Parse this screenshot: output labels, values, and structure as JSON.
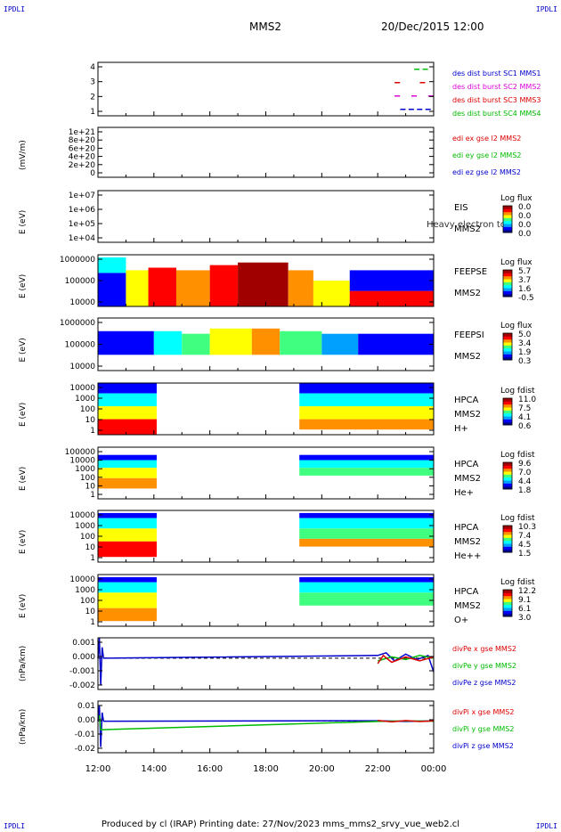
{
  "corners": {
    "tl": "IPDLI",
    "tr": "IPDLI",
    "bl": "IPDLI",
    "br": "IPDLI"
  },
  "header": {
    "title": "MMS2",
    "date": "20/Dec/2015 12:00"
  },
  "footer": "Produced by cl (IRAP)   Printing date: 27/Nov/2023   mms_mms2_srvy_vue_web2.cl",
  "colors": {
    "blue": "#0000cc",
    "magenta": "#dd00dd",
    "red": "#dd0000",
    "green": "#00bb00",
    "rainbow": [
      "#000090",
      "#0000ff",
      "#00a0ff",
      "#00ffff",
      "#40ff80",
      "#ffff00",
      "#ff9000",
      "#ff0000",
      "#a00000"
    ]
  },
  "x_axis": {
    "ticks": [
      "12:00",
      "14:00",
      "16:00",
      "18:00",
      "20:00",
      "22:00",
      "00:00"
    ],
    "range_hours": [
      12,
      24
    ]
  },
  "chart_data": [
    {
      "type": "scatter",
      "name": "burst",
      "yticks": [
        "4",
        "3",
        "2",
        "1"
      ],
      "ylim": [
        0.5,
        4.5
      ],
      "legend": [
        {
          "text": "des dist burst SC1 MMS1",
          "color": "blue"
        },
        {
          "text": "des dist burst SC2 MMS2",
          "color": "magenta"
        },
        {
          "text": "des dist burst SC3 MMS3",
          "color": "red"
        },
        {
          "text": "des dist burst SC4 MMS4",
          "color": "green"
        }
      ],
      "series": [
        {
          "sc": 1,
          "x": [
            22.9,
            23.2,
            23.5,
            23.8
          ],
          "y": [
            1,
            1,
            1,
            1
          ]
        },
        {
          "sc": 2,
          "x": [
            22.7,
            23.3,
            23.9
          ],
          "y": [
            2,
            2,
            2
          ]
        },
        {
          "sc": 3,
          "x": [
            22.7,
            23.6
          ],
          "y": [
            3,
            3
          ]
        },
        {
          "sc": 4,
          "x": [
            23.4,
            23.7
          ],
          "y": [
            4,
            4
          ]
        }
      ]
    },
    {
      "type": "line",
      "name": "edi",
      "ylabel": "(mV/m)",
      "yticks": [
        "1e+21",
        "8e+20",
        "6e+20",
        "4e+20",
        "2e+20",
        "0"
      ],
      "ylim": [
        0,
        1e+21
      ],
      "zero_line": true,
      "legend": [
        {
          "text": "edi ex gse l2 MMS2",
          "color": "red"
        },
        {
          "text": "edi ey gse l2 MMS2",
          "color": "green"
        },
        {
          "text": "edi ez gse l2 MMS2",
          "color": "blue"
        }
      ]
    },
    {
      "type": "heatmap",
      "name": "eis",
      "ylabel": "E (eV)",
      "yticks": [
        "1e+07",
        "1e+06",
        "1e+05",
        "1e+04"
      ],
      "right_labels": [
        "EIS",
        "MMS2"
      ],
      "overlay": "Heavy electron to",
      "colorbar": {
        "title": "Log flux",
        "ticks": [
          "0.0",
          "0.0",
          "0.0",
          "0.0"
        ]
      },
      "blocks": []
    },
    {
      "type": "heatmap",
      "name": "feepse",
      "ylabel": "E (eV)",
      "yticks": [
        "1000000",
        "100000",
        "10000"
      ],
      "right_labels": [
        "FEEPSE",
        "MMS2"
      ],
      "colorbar": {
        "title": "Log flux",
        "ticks": [
          "5.7",
          "3.7",
          "1.6",
          "-0.5"
        ]
      },
      "blocks": [
        {
          "x": [
            12.0,
            13.0
          ],
          "y": [
            0.0,
            0.65
          ],
          "c": 1
        },
        {
          "x": [
            12.0,
            13.0
          ],
          "y": [
            0.65,
            0.95
          ],
          "c": 3
        },
        {
          "x": [
            13.0,
            13.8
          ],
          "y": [
            0.0,
            0.7
          ],
          "c": 5
        },
        {
          "x": [
            13.8,
            14.8
          ],
          "y": [
            0.0,
            0.75
          ],
          "c": 7
        },
        {
          "x": [
            14.8,
            16.0
          ],
          "y": [
            0.0,
            0.7
          ],
          "c": 6
        },
        {
          "x": [
            16.0,
            17.0
          ],
          "y": [
            0.0,
            0.8
          ],
          "c": 7
        },
        {
          "x": [
            17.0,
            18.8
          ],
          "y": [
            0.0,
            0.85
          ],
          "c": 8
        },
        {
          "x": [
            18.8,
            19.7
          ],
          "y": [
            0.0,
            0.7
          ],
          "c": 6
        },
        {
          "x": [
            19.7,
            21.0
          ],
          "y": [
            0.0,
            0.5
          ],
          "c": 5
        },
        {
          "x": [
            21.0,
            24.0
          ],
          "y": [
            0.0,
            0.3
          ],
          "c": 7
        },
        {
          "x": [
            21.0,
            24.0
          ],
          "y": [
            0.3,
            0.7
          ],
          "c": 1
        }
      ]
    },
    {
      "type": "heatmap",
      "name": "feepsi",
      "ylabel": "E (eV)",
      "yticks": [
        "1000000",
        "100000",
        "10000"
      ],
      "right_labels": [
        "FEEPSI",
        "MMS2"
      ],
      "colorbar": {
        "title": "Log flux",
        "ticks": [
          "5.0",
          "3.4",
          "1.9",
          "0.3"
        ]
      },
      "blocks": [
        {
          "x": [
            12.0,
            14.0
          ],
          "y": [
            0.3,
            0.75
          ],
          "c": 1
        },
        {
          "x": [
            14.0,
            15.0
          ],
          "y": [
            0.3,
            0.75
          ],
          "c": 3
        },
        {
          "x": [
            15.0,
            16.0
          ],
          "y": [
            0.3,
            0.7
          ],
          "c": 4
        },
        {
          "x": [
            16.0,
            17.5
          ],
          "y": [
            0.3,
            0.8
          ],
          "c": 5
        },
        {
          "x": [
            17.5,
            18.5
          ],
          "y": [
            0.3,
            0.8
          ],
          "c": 6
        },
        {
          "x": [
            18.5,
            20.0
          ],
          "y": [
            0.3,
            0.75
          ],
          "c": 4
        },
        {
          "x": [
            20.0,
            21.3
          ],
          "y": [
            0.3,
            0.7
          ],
          "c": 2
        },
        {
          "x": [
            21.3,
            24.0
          ],
          "y": [
            0.3,
            0.7
          ],
          "c": 1
        }
      ]
    },
    {
      "type": "heatmap",
      "name": "hpca-h",
      "ylabel": "E (eV)",
      "yticks": [
        "10000",
        "1000",
        "100",
        "10",
        "1"
      ],
      "right_labels": [
        "HPCA",
        "MMS2",
        "H+"
      ],
      "colorbar": {
        "title": "Log fdist",
        "ticks": [
          "11.0",
          "7.5",
          "4.1",
          "0.6"
        ]
      },
      "blocks": [
        {
          "x": [
            12.0,
            14.1
          ],
          "y": [
            0.8,
            1.0
          ],
          "c": 1
        },
        {
          "x": [
            12.0,
            14.1
          ],
          "y": [
            0.55,
            0.8
          ],
          "c": 3
        },
        {
          "x": [
            12.0,
            14.1
          ],
          "y": [
            0.3,
            0.55
          ],
          "c": 5
        },
        {
          "x": [
            12.0,
            14.1
          ],
          "y": [
            0.0,
            0.3
          ],
          "c": 7
        },
        {
          "x": [
            19.2,
            24.0
          ],
          "y": [
            0.8,
            1.0
          ],
          "c": 1
        },
        {
          "x": [
            19.2,
            24.0
          ],
          "y": [
            0.55,
            0.8
          ],
          "c": 3
        },
        {
          "x": [
            19.2,
            24.0
          ],
          "y": [
            0.3,
            0.55
          ],
          "c": 5
        },
        {
          "x": [
            19.2,
            24.0
          ],
          "y": [
            0.1,
            0.3
          ],
          "c": 6
        }
      ]
    },
    {
      "type": "heatmap",
      "name": "hpca-he",
      "ylabel": "E (eV)",
      "yticks": [
        "100000",
        "10000",
        "1000",
        "100",
        "10",
        "1"
      ],
      "right_labels": [
        "HPCA",
        "MMS2",
        "He+"
      ],
      "colorbar": {
        "title": "Log fdist",
        "ticks": [
          "9.6",
          "7.0",
          "4.4",
          "1.8"
        ]
      },
      "blocks": [
        {
          "x": [
            12.0,
            14.1
          ],
          "y": [
            0.75,
            0.85
          ],
          "c": 1
        },
        {
          "x": [
            12.0,
            14.1
          ],
          "y": [
            0.6,
            0.75
          ],
          "c": 3
        },
        {
          "x": [
            12.0,
            14.1
          ],
          "y": [
            0.4,
            0.6
          ],
          "c": 5
        },
        {
          "x": [
            12.0,
            14.1
          ],
          "y": [
            0.2,
            0.4
          ],
          "c": 6
        },
        {
          "x": [
            19.2,
            24.0
          ],
          "y": [
            0.75,
            0.85
          ],
          "c": 1
        },
        {
          "x": [
            19.2,
            24.0
          ],
          "y": [
            0.6,
            0.75
          ],
          "c": 3
        },
        {
          "x": [
            19.2,
            24.0
          ],
          "y": [
            0.45,
            0.6
          ],
          "c": 4
        }
      ]
    },
    {
      "type": "heatmap",
      "name": "hpca-hepp",
      "ylabel": "E (eV)",
      "yticks": [
        "10000",
        "1000",
        "100",
        "10",
        "1"
      ],
      "right_labels": [
        "HPCA",
        "MMS2",
        "He++"
      ],
      "colorbar": {
        "title": "Log fdist",
        "ticks": [
          "10.3",
          "7.4",
          "4.5",
          "1.5"
        ]
      },
      "blocks": [
        {
          "x": [
            12.0,
            14.1
          ],
          "y": [
            0.85,
            0.95
          ],
          "c": 1
        },
        {
          "x": [
            12.0,
            14.1
          ],
          "y": [
            0.65,
            0.85
          ],
          "c": 3
        },
        {
          "x": [
            12.0,
            14.1
          ],
          "y": [
            0.4,
            0.65
          ],
          "c": 5
        },
        {
          "x": [
            12.0,
            14.1
          ],
          "y": [
            0.1,
            0.4
          ],
          "c": 7
        },
        {
          "x": [
            19.2,
            24.0
          ],
          "y": [
            0.85,
            0.95
          ],
          "c": 1
        },
        {
          "x": [
            19.2,
            24.0
          ],
          "y": [
            0.65,
            0.85
          ],
          "c": 3
        },
        {
          "x": [
            19.2,
            24.0
          ],
          "y": [
            0.45,
            0.65
          ],
          "c": 4
        },
        {
          "x": [
            19.2,
            24.0
          ],
          "y": [
            0.3,
            0.45
          ],
          "c": 6
        }
      ]
    },
    {
      "type": "heatmap",
      "name": "hpca-o",
      "ylabel": "E (eV)",
      "yticks": [
        "10000",
        "1000",
        "100",
        "10",
        "1"
      ],
      "right_labels": [
        "HPCA",
        "MMS2",
        "O+"
      ],
      "colorbar": {
        "title": "Log fdist",
        "ticks": [
          "12.2",
          "9.1",
          "6.1",
          "3.0"
        ]
      },
      "blocks": [
        {
          "x": [
            12.0,
            14.1
          ],
          "y": [
            0.85,
            0.95
          ],
          "c": 1
        },
        {
          "x": [
            12.0,
            14.1
          ],
          "y": [
            0.65,
            0.85
          ],
          "c": 3
        },
        {
          "x": [
            12.0,
            14.1
          ],
          "y": [
            0.35,
            0.65
          ],
          "c": 5
        },
        {
          "x": [
            12.0,
            14.1
          ],
          "y": [
            0.1,
            0.35
          ],
          "c": 6
        },
        {
          "x": [
            19.2,
            24.0
          ],
          "y": [
            0.85,
            0.95
          ],
          "c": 1
        },
        {
          "x": [
            19.2,
            24.0
          ],
          "y": [
            0.65,
            0.85
          ],
          "c": 3
        },
        {
          "x": [
            19.2,
            24.0
          ],
          "y": [
            0.4,
            0.65
          ],
          "c": 4
        }
      ]
    },
    {
      "type": "line",
      "name": "divpe",
      "ylabel": "(nPa/km)",
      "yticks": [
        "0.001",
        "0.000",
        "-0.001",
        "-0.002"
      ],
      "ylim": [
        -0.0023,
        0.0015
      ],
      "zero_line": true,
      "legend": [
        {
          "text": "divPe x gse MMS2",
          "color": "red"
        },
        {
          "text": "divPe y gse MMS2",
          "color": "green"
        },
        {
          "text": "divPe z gse MMS2",
          "color": "blue"
        }
      ],
      "series": [
        {
          "color": "blue",
          "x": [
            12.0,
            12.05,
            12.1,
            12.15,
            12.2,
            22.0,
            22.3,
            22.6,
            23.0,
            23.4,
            23.8,
            24.0
          ],
          "y": [
            0.0,
            0.0015,
            -0.002,
            0.0008,
            0.0,
            0.0002,
            0.0004,
            -0.0002,
            0.0003,
            -0.0001,
            0.0002,
            -0.001
          ]
        },
        {
          "color": "green",
          "x": [
            22.0,
            22.5,
            23.0,
            23.5,
            24.0
          ],
          "y": [
            -0.0002,
            0.0001,
            -0.0001,
            0.0002,
            0.0
          ]
        },
        {
          "color": "red",
          "x": [
            22.0,
            22.2,
            22.5,
            23.0,
            23.5,
            24.0
          ],
          "y": [
            -0.0004,
            0.0002,
            -0.0003,
            0.0001,
            -0.0002,
            0.0001
          ]
        }
      ]
    },
    {
      "type": "line",
      "name": "divpi",
      "ylabel": "(nPa/km)",
      "yticks": [
        "0.01",
        "0.00",
        "-0.01",
        "-0.02"
      ],
      "ylim": [
        -0.022,
        0.014
      ],
      "zero_line": true,
      "legend": [
        {
          "text": "divPi x gse MMS2",
          "color": "red"
        },
        {
          "text": "divPi y gse MMS2",
          "color": "green"
        },
        {
          "text": "divPi z gse MMS2",
          "color": "blue"
        }
      ],
      "series": [
        {
          "color": "blue",
          "x": [
            12.0,
            12.05,
            12.1,
            12.15,
            12.2,
            22.0,
            23.0,
            24.0
          ],
          "y": [
            0.0,
            0.011,
            -0.018,
            0.006,
            0.0,
            0.0003,
            -0.0002,
            0.0002
          ]
        },
        {
          "color": "green",
          "x": [
            12.05,
            12.1,
            22.0,
            23.0,
            24.0
          ],
          "y": [
            0.004,
            -0.006,
            -0.0002,
            0.0002,
            0.0
          ]
        },
        {
          "color": "red",
          "x": [
            22.0,
            22.5,
            23.0,
            23.5,
            24.0
          ],
          "y": [
            0.0005,
            -0.0005,
            0.0004,
            -0.0003,
            0.0002
          ]
        }
      ]
    }
  ]
}
